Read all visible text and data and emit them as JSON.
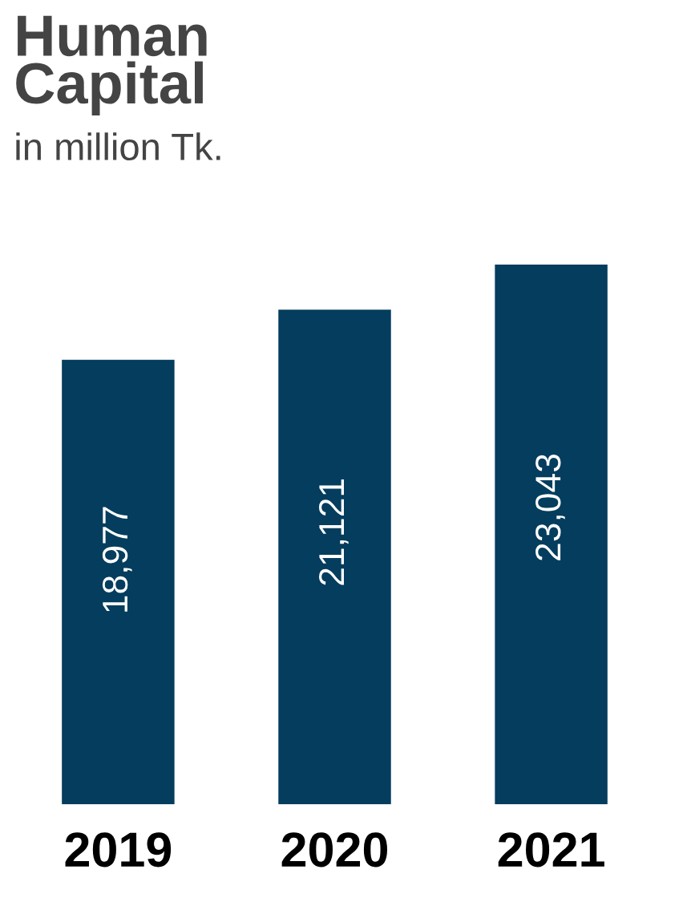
{
  "chart_data": {
    "type": "bar",
    "title": "Human\nCapital",
    "subtitle": "in million Tk.",
    "categories": [
      "2019",
      "2020",
      "2021"
    ],
    "values": [
      18977,
      21121,
      23043
    ],
    "color": "#043d5d",
    "value_labels": [
      "18,977",
      "21,121",
      "23,043"
    ],
    "tick_labels": "x",
    "grid": false
  }
}
